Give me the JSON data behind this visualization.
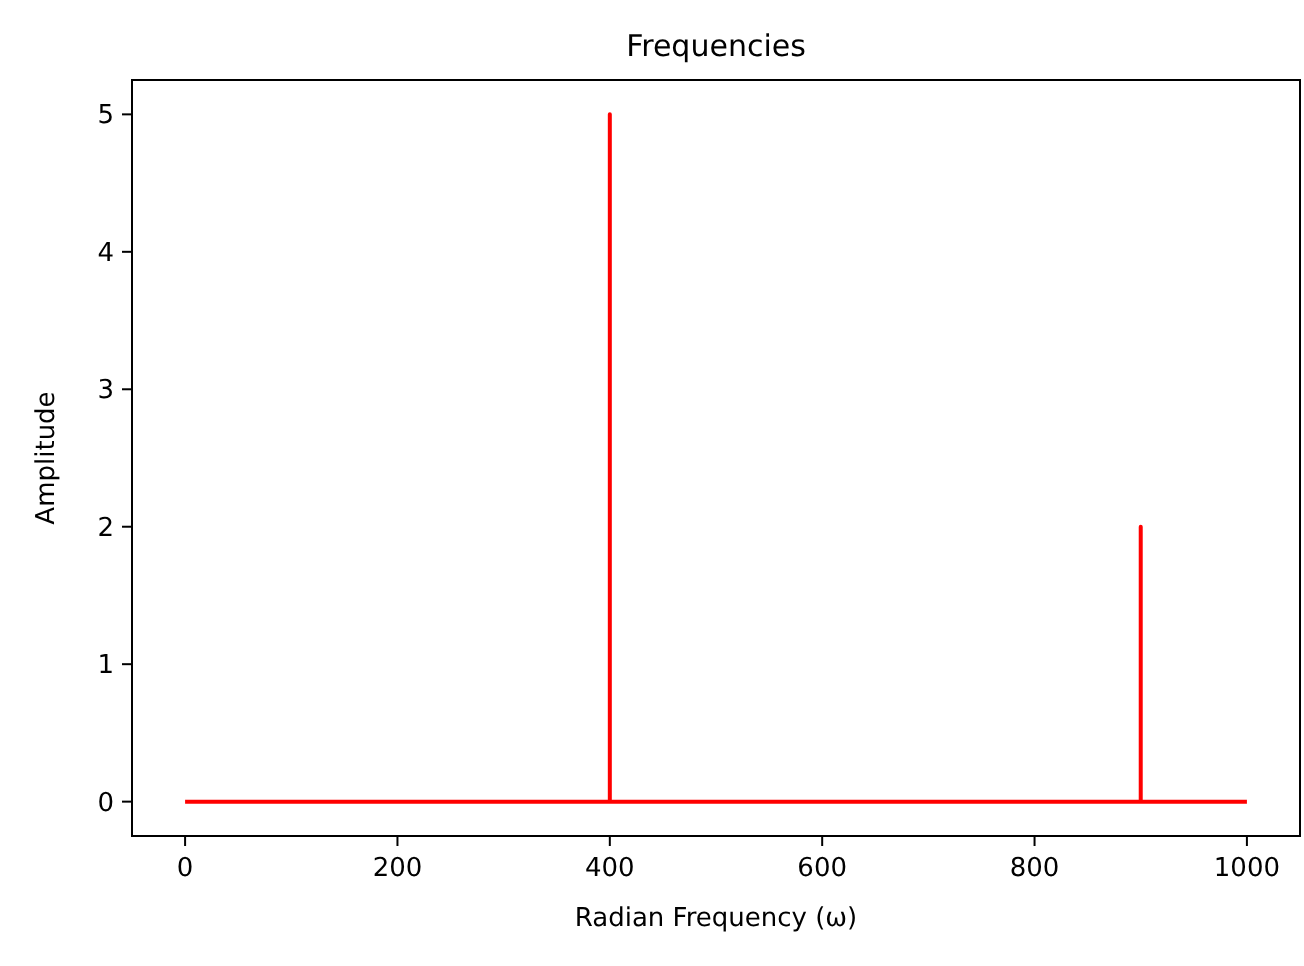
{
  "chart_data": {
    "type": "line",
    "title": "Frequencies",
    "xlabel": "Radian Frequency (ω)",
    "ylabel": "Amplitude",
    "x": [
      0,
      400,
      400,
      400,
      900,
      900,
      900,
      1000
    ],
    "series": [
      {
        "color": "#ff0000",
        "values": [
          0,
          0,
          5,
          0,
          0,
          2,
          0,
          0
        ]
      }
    ],
    "xlim": [
      -50,
      1050
    ],
    "xticks": [
      0,
      200,
      400,
      600,
      800,
      1000
    ],
    "ylim": [
      -0.25,
      5.25
    ],
    "yticks": [
      0,
      1,
      2,
      3,
      4,
      5
    ],
    "grid": false,
    "marker": "none",
    "line_style": "solid"
  }
}
